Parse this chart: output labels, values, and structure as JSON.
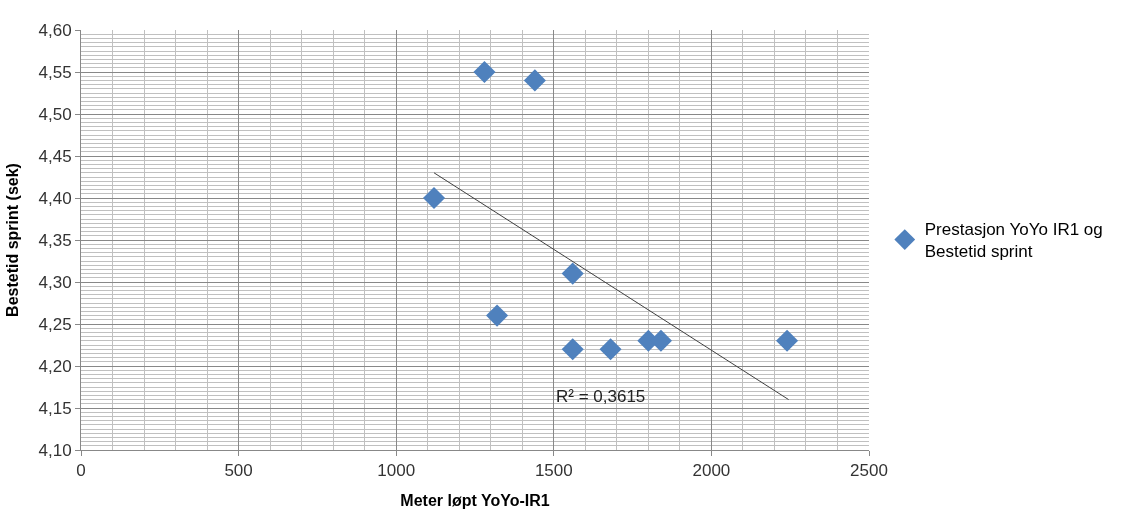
{
  "chart_data": {
    "type": "scatter",
    "xlabel": "Meter løpt YoYo-IR1",
    "ylabel": "Bestetid sprint (sek)",
    "series": [
      {
        "name": "Prestasjon YoYo IR1 og Bestetid sprint",
        "color": "#4f81bd",
        "marker": "diamond",
        "x": [
          1280,
          1440,
          1120,
          1560,
          1320,
          1560,
          1680,
          1800,
          1840,
          2240
        ],
        "values": [
          4.55,
          4.54,
          4.4,
          4.31,
          4.26,
          4.22,
          4.22,
          4.23,
          4.23,
          4.23
        ]
      },
      {
        "type": "line",
        "color": "#404040",
        "marker": "none",
        "line_style": "solid",
        "x": [
          1120,
          2245
        ],
        "values": [
          4.43,
          4.16
        ]
      }
    ],
    "annotations": [
      "R² = 0,3615"
    ],
    "xlim": [
      0,
      2500
    ],
    "xticks": [
      0,
      500,
      1000,
      1500,
      2000,
      2500
    ],
    "ylim": [
      4.1,
      4.6
    ],
    "yticks": [
      {
        "value": 4.1,
        "label": "4,10"
      },
      {
        "value": 4.15,
        "label": "4,15"
      },
      {
        "value": 4.2,
        "label": "4,20"
      },
      {
        "value": 4.25,
        "label": "4,25"
      },
      {
        "value": 4.3,
        "label": "4,30"
      },
      {
        "value": 4.35,
        "label": "4,35"
      },
      {
        "value": 4.4,
        "label": "4,40"
      },
      {
        "value": 4.45,
        "label": "4,45"
      },
      {
        "value": 4.5,
        "label": "4,50"
      },
      {
        "value": 4.55,
        "label": "4,55"
      },
      {
        "value": 4.6,
        "label": "4,60"
      }
    ],
    "grid": true,
    "legend": "right"
  }
}
